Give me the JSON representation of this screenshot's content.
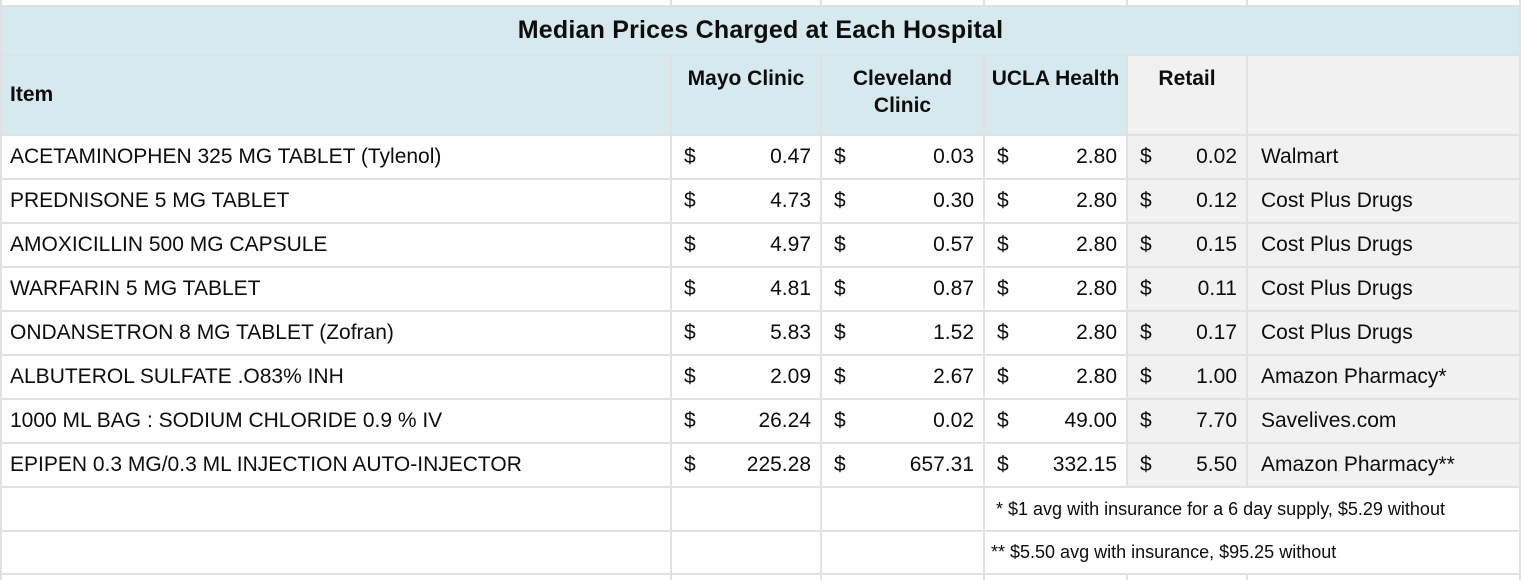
{
  "title": "Median Prices Charged at Each Hospital",
  "currency_symbol": "$",
  "columns": {
    "item": "Item",
    "mayo": "Mayo Clinic",
    "cleveland": "Cleveland Clinic",
    "ucla": "UCLA Health",
    "retail": "Retail",
    "source": ""
  },
  "rows": [
    {
      "item": "ACETAMINOPHEN 325 MG TABLET (Tylenol)",
      "prices": {
        "mayo": "0.47",
        "cleveland": "0.03",
        "ucla": "2.80",
        "retail": "0.02"
      },
      "source": "Walmart"
    },
    {
      "item": "PREDNISONE 5 MG TABLET",
      "prices": {
        "mayo": "4.73",
        "cleveland": "0.30",
        "ucla": "2.80",
        "retail": "0.12"
      },
      "source": "Cost Plus Drugs"
    },
    {
      "item": "AMOXICILLIN 500 MG CAPSULE",
      "prices": {
        "mayo": "4.97",
        "cleveland": "0.57",
        "ucla": "2.80",
        "retail": "0.15"
      },
      "source": "Cost Plus Drugs"
    },
    {
      "item": "WARFARIN 5 MG TABLET",
      "prices": {
        "mayo": "4.81",
        "cleveland": "0.87",
        "ucla": "2.80",
        "retail": "0.11"
      },
      "source": "Cost Plus Drugs"
    },
    {
      "item": "ONDANSETRON 8 MG TABLET (Zofran)",
      "prices": {
        "mayo": "5.83",
        "cleveland": "1.52",
        "ucla": "2.80",
        "retail": "0.17"
      },
      "source": "Cost Plus Drugs"
    },
    {
      "item": "ALBUTEROL SULFATE .O83% INH",
      "prices": {
        "mayo": "2.09",
        "cleveland": "2.67",
        "ucla": "2.80",
        "retail": "1.00"
      },
      "source": "Amazon Pharmacy*"
    },
    {
      "item": "1000 ML BAG : SODIUM CHLORIDE 0.9 % IV",
      "prices": {
        "mayo": "26.24",
        "cleveland": "0.02",
        "ucla": "49.00",
        "retail": "7.70"
      },
      "source": "Savelives.com"
    },
    {
      "item": "EPIPEN 0.3 MG/0.3 ML INJECTION AUTO-INJECTOR",
      "prices": {
        "mayo": "225.28",
        "cleveland": "657.31",
        "ucla": "332.15",
        "retail": "5.50"
      },
      "source": "Amazon Pharmacy**"
    }
  ],
  "footnotes": [
    {
      "text": " * $1 avg with insurance for a 6 day supply, $5.29 without"
    },
    {
      "text": "** $5.50 avg with insurance, $95.25 without"
    }
  ],
  "colors": {
    "header_bg": "#d6e9ee",
    "band_bg": "#f2f1f1",
    "gridline": "#e1e1e1",
    "text": "#0d0d0d",
    "cell_bg": "#ffffff"
  }
}
